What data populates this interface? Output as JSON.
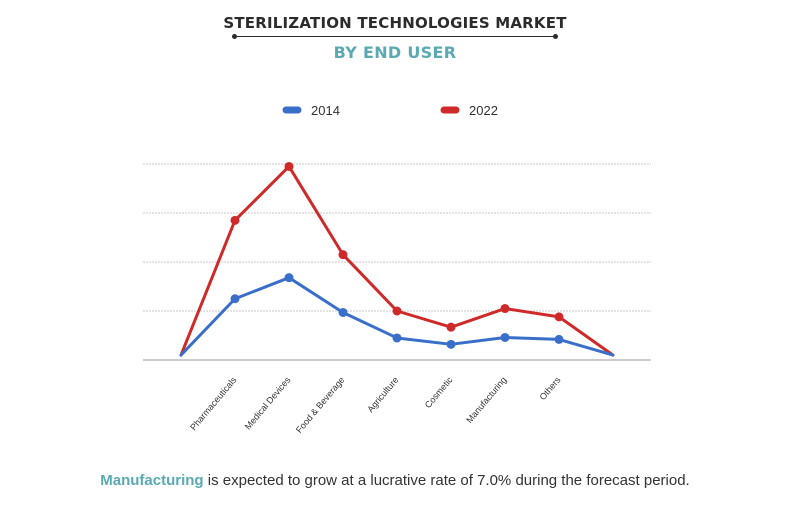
{
  "header": {
    "title": "STERILIZATION TECHNOLOGIES MARKET",
    "subtitle": "BY END USER"
  },
  "colors": {
    "accent": "#5aa9b3",
    "series_2014": "#3a6fc9",
    "series_2022": "#cf2a2a",
    "grid": "#c8c8c8"
  },
  "chart_data": {
    "type": "line",
    "categories": [
      "",
      "Pharmaceuticals",
      "Medical Devices",
      "Food & Beverage",
      "Agriculture",
      "Cosmetic",
      "Manufacturing",
      "Others",
      ""
    ],
    "series": [
      {
        "name": "2014",
        "values": [
          1,
          12.5,
          16.8,
          9.7,
          4.5,
          3.2,
          4.6,
          4.2,
          1
        ]
      },
      {
        "name": "2022",
        "values": [
          1,
          28.5,
          39.5,
          21.5,
          10.0,
          6.7,
          10.5,
          8.8,
          1
        ]
      }
    ],
    "ylim": [
      0,
      40
    ],
    "grid": true,
    "legend": "top-center",
    "xlabel": "",
    "ylabel": ""
  },
  "footer": {
    "highlight": "Manufacturing",
    "text": " is expected to grow at a lucrative rate of 7.0% during the forecast period."
  }
}
